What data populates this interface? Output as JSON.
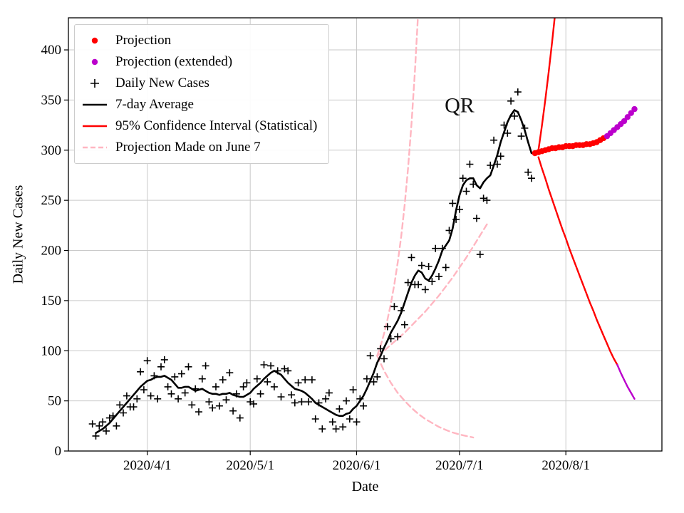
{
  "chart_data": {
    "type": "line",
    "title": "",
    "xlabel": "Date",
    "ylabel": "Daily New Cases",
    "x_unit": "days since 2020-03-01",
    "xlim": [
      8,
      181
    ],
    "ylim": [
      0,
      432
    ],
    "grid": true,
    "legend_position": "upper-left",
    "yticks": [
      0,
      50,
      100,
      150,
      200,
      250,
      300,
      350,
      400
    ],
    "xticks": [
      {
        "value": 31,
        "label": "2020/4/1"
      },
      {
        "value": 61,
        "label": "2020/5/1"
      },
      {
        "value": 92,
        "label": "2020/6/1"
      },
      {
        "value": 122,
        "label": "2020/7/1"
      },
      {
        "value": 153,
        "label": "2020/8/1"
      }
    ],
    "colors": {
      "projection": "#ff0000",
      "projection_extended": "#bb00cc",
      "daily_cases": "#000000",
      "average": "#000000",
      "confidence_interval": "#ff0000",
      "june7_projection": "#ffb6c1",
      "grid": "#c9c9c9"
    },
    "annotation": {
      "text": "QR",
      "x": 122,
      "y": 338,
      "fontsize": 30
    },
    "legend": {
      "entries": [
        {
          "label": "Projection",
          "marker": "dot",
          "color": "#ff0000"
        },
        {
          "label": "Projection (extended)",
          "marker": "dot",
          "color": "#bb00cc"
        },
        {
          "label": "Daily New Cases",
          "marker": "plus",
          "color": "#000000"
        },
        {
          "label": "7-day Average",
          "marker": "line",
          "color": "#000000"
        },
        {
          "label": "95% Confidence Interval (Statistical)",
          "marker": "line",
          "color": "#ff0000"
        },
        {
          "label": "Projection Made on June 7",
          "marker": "dashed",
          "color": "#ffb6c1"
        }
      ]
    },
    "series": [
      {
        "id": "proj_june7_upper",
        "label": "Projection Made on June 7",
        "render": "line",
        "dash": "8 5",
        "color": "#ffb6c1",
        "width": 2.4,
        "start": 98,
        "step": 1,
        "values": [
          95,
          105,
          117,
          131,
          147,
          166,
          188,
          214,
          245,
          282,
          326,
          378,
          440
        ]
      },
      {
        "id": "proj_june7_center",
        "label": "Projection Made on June 7 (central)",
        "render": "line",
        "dash": "8 5",
        "color": "#ffb6c1",
        "width": 2.4,
        "start": 98,
        "step": 2,
        "values": [
          95,
          100,
          106,
          112,
          118,
          125,
          132,
          139,
          147,
          155,
          164,
          173,
          183,
          193,
          204,
          215,
          226
        ]
      },
      {
        "id": "proj_june7_lower",
        "label": "Projection Made on June 7 (lower)",
        "render": "line",
        "dash": "8 5",
        "color": "#ffb6c1",
        "width": 2.4,
        "start": 98,
        "step": 2,
        "values": [
          95,
          80,
          68,
          58,
          50,
          43,
          37,
          32,
          28,
          24,
          21,
          18.5,
          16.5,
          15,
          13.5
        ]
      },
      {
        "id": "daily_new_cases",
        "label": "Daily New Cases",
        "render": "scatter",
        "marker": "plus",
        "color": "#000000",
        "start": 15,
        "step": 1,
        "values": [
          27,
          15,
          25,
          29,
          20,
          33,
          35,
          25,
          46,
          38,
          55,
          44,
          44,
          52,
          79,
          61,
          90,
          55,
          75,
          52,
          84,
          91,
          64,
          57,
          74,
          52,
          77,
          58,
          84,
          46,
          62,
          39,
          72,
          85,
          49,
          43,
          64,
          45,
          71,
          51,
          78,
          40,
          57,
          33,
          64,
          68,
          49,
          47,
          72,
          57,
          86,
          69,
          85,
          64,
          80,
          54,
          82,
          80,
          56,
          48,
          68,
          49,
          71,
          49,
          71,
          32,
          48,
          22,
          52,
          58,
          29,
          22,
          42,
          24,
          50,
          32,
          61,
          29,
          52,
          45,
          72,
          95,
          69,
          74,
          102,
          92,
          124,
          112,
          144,
          114,
          140,
          126,
          168,
          193,
          166,
          166,
          185,
          161,
          184,
          169,
          202,
          174,
          202,
          183,
          220,
          247,
          231,
          241,
          272,
          259,
          286,
          266,
          232,
          196,
          252,
          250,
          285,
          310,
          286,
          294,
          325,
          317,
          349,
          334,
          358,
          314,
          322,
          278,
          272
        ]
      },
      {
        "id": "seven_day_average",
        "label": "7-day Average",
        "render": "line",
        "color": "#000000",
        "width": 2.6,
        "start": 16,
        "step": 1,
        "values": [
          18,
          20,
          22,
          25,
          28,
          32,
          36,
          40,
          44,
          48,
          52,
          56,
          60,
          64,
          67,
          70,
          71,
          73,
          74,
          74,
          75,
          73,
          71,
          67,
          63,
          63,
          64,
          64,
          62,
          60,
          61,
          62,
          60,
          58,
          57,
          57,
          56,
          57,
          57,
          58,
          56,
          55,
          54,
          54,
          56,
          58,
          62,
          65,
          68,
          72,
          75,
          78,
          80,
          78,
          76,
          72,
          68,
          65,
          62,
          61,
          60,
          58,
          55,
          52,
          48,
          46,
          44,
          42,
          40,
          38,
          36,
          35,
          35,
          37,
          38,
          42,
          45,
          50,
          55,
          62,
          70,
          78,
          88,
          95,
          103,
          110,
          118,
          124,
          130,
          138,
          148,
          158,
          168,
          175,
          180,
          178,
          172,
          170,
          175,
          182,
          190,
          200,
          205,
          210,
          222,
          240,
          255,
          265,
          270,
          272,
          272,
          265,
          262,
          268,
          272,
          275,
          285,
          295,
          308,
          318,
          328,
          335,
          340,
          338,
          330,
          320,
          308,
          297
        ]
      },
      {
        "id": "ci_upper",
        "label": "95% Confidence Interval (Statistical)",
        "render": "line",
        "color": "#ff0000",
        "width": 2.4,
        "start": 145,
        "step": 1,
        "values": [
          300,
          324,
          350,
          378,
          408,
          440,
          475
        ]
      },
      {
        "id": "ci_lower",
        "label": "95% Confidence Interval (Statistical) lower",
        "render": "line",
        "color": "#ff0000",
        "width": 2.4,
        "start": 145,
        "step": 1,
        "values": [
          293,
          282,
          272,
          261,
          251,
          241,
          231,
          221,
          212,
          202,
          193,
          184,
          175,
          166,
          157,
          148,
          140,
          131,
          123,
          115,
          107,
          99,
          92,
          86
        ]
      },
      {
        "id": "ci_lower_extended",
        "label": "Confidence interval extension",
        "render": "line",
        "color": "#bb00cc",
        "width": 2.4,
        "start": 168,
        "step": 1,
        "values": [
          86,
          78,
          71,
          64,
          58,
          52
        ]
      },
      {
        "id": "projection",
        "label": "Projection",
        "render": "scatter",
        "marker": "dot",
        "color": "#ff0000",
        "start": 144,
        "step": 1,
        "values": [
          297,
          298,
          299,
          300,
          301,
          302,
          302,
          303,
          303,
          304,
          304,
          304,
          305,
          305,
          305,
          306,
          306,
          307,
          308,
          310,
          312
        ]
      },
      {
        "id": "projection_extended",
        "label": "Projection (extended)",
        "render": "scatter",
        "marker": "dot",
        "color": "#bb00cc",
        "start": 165,
        "step": 1,
        "values": [
          314,
          317,
          320,
          323,
          326,
          329,
          333,
          337,
          341
        ]
      }
    ]
  }
}
